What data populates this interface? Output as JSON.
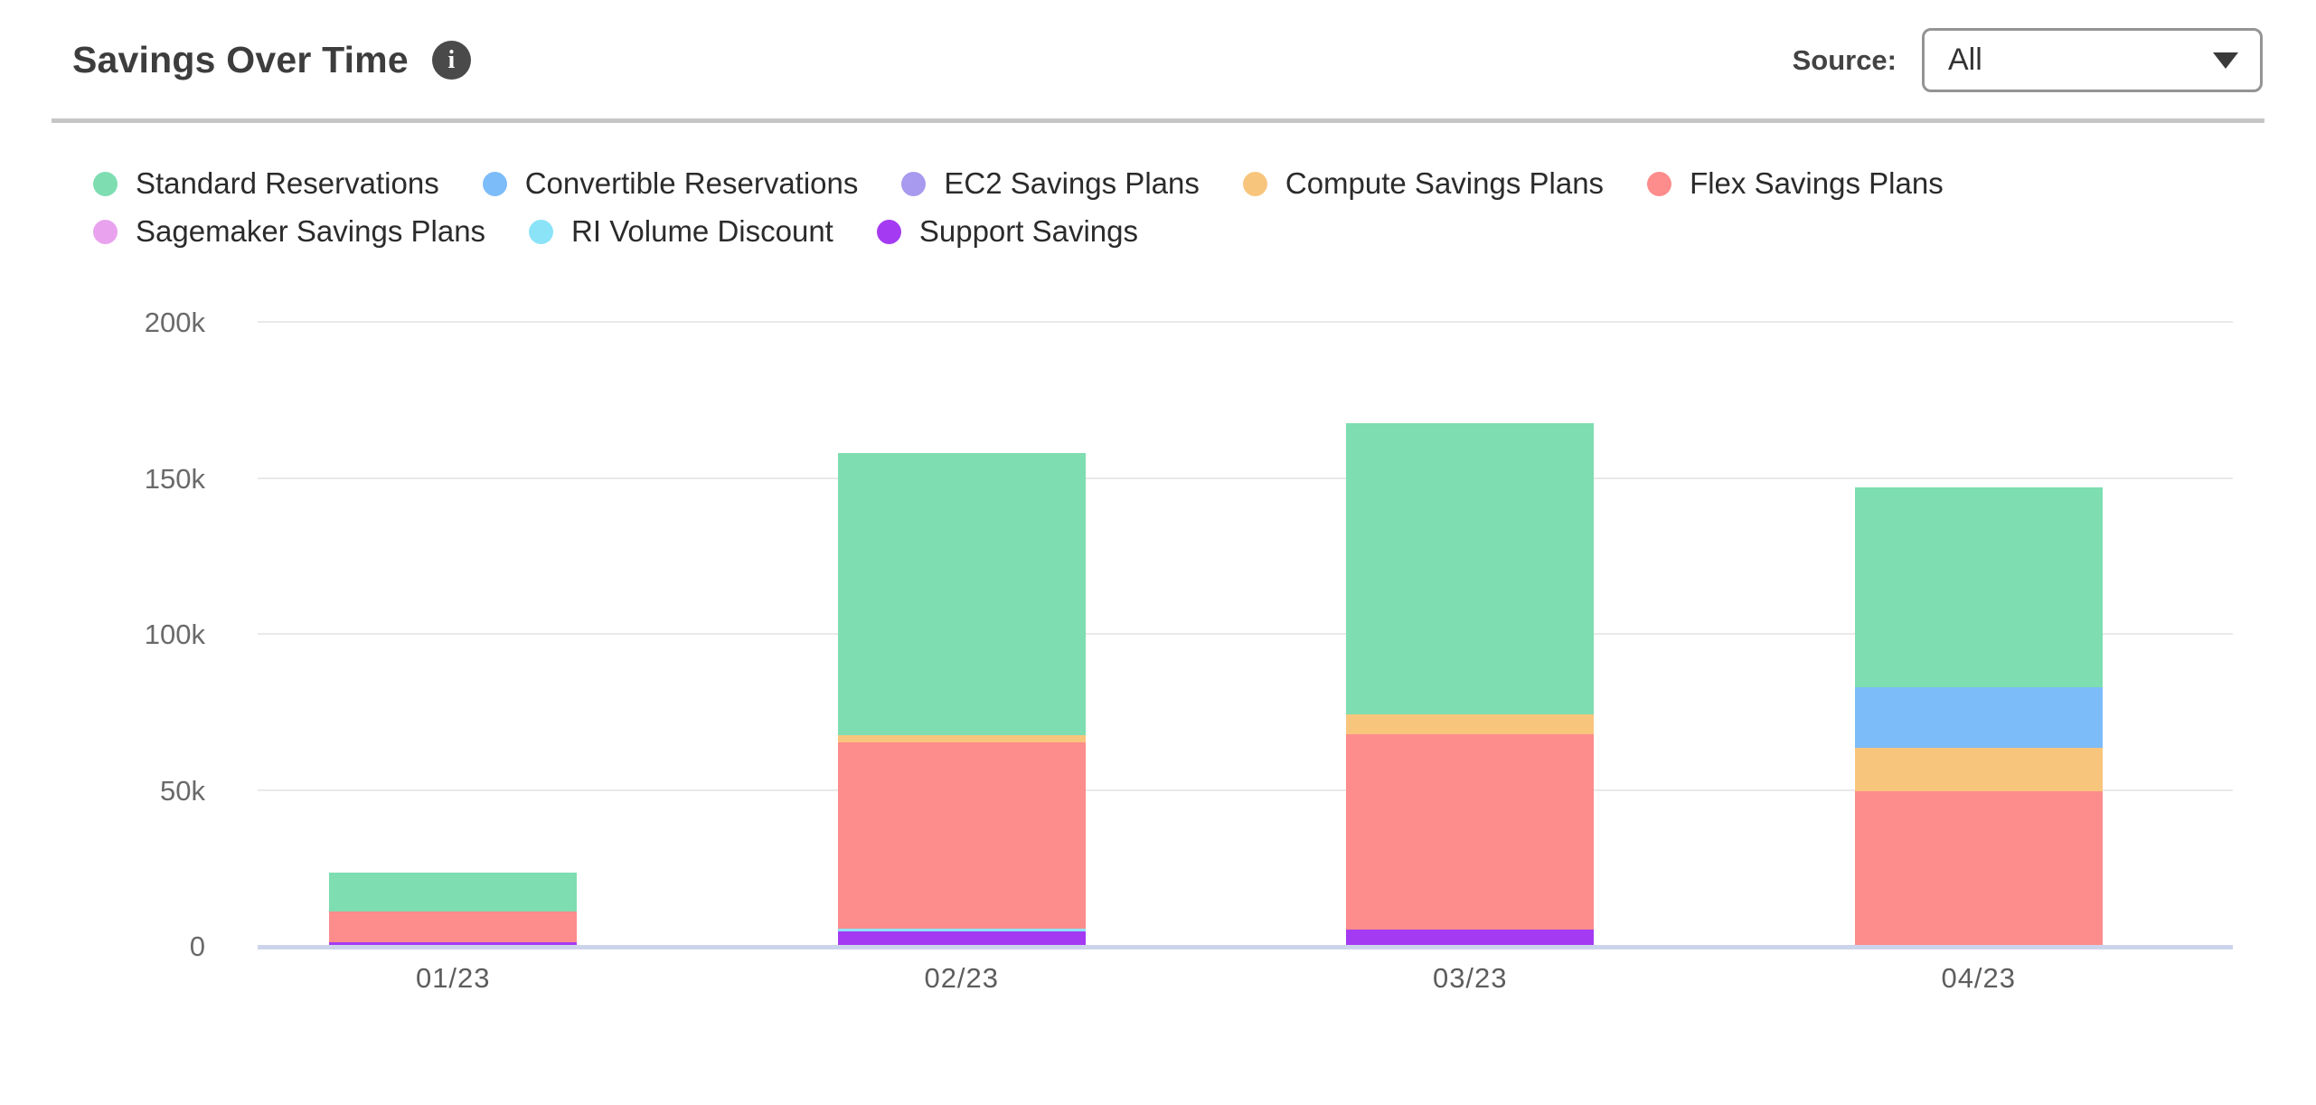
{
  "header": {
    "title": "Savings Over Time",
    "info_glyph": "i",
    "source_label": "Source:",
    "source_value": "All"
  },
  "ui_colors": {
    "gridline": "#E9E9E9",
    "axis_line": "#CCD4EC",
    "info_badge": "#4A4A4A",
    "dropdown_border": "#949494",
    "divider": "#C6C6C6"
  },
  "chart_data": {
    "type": "bar",
    "stacked": true,
    "title": "Savings Over Time",
    "xlabel": "",
    "ylabel": "",
    "categories": [
      "01/23",
      "02/23",
      "03/23",
      "04/23"
    ],
    "series": [
      {
        "name": "Standard Reservations",
        "color": "#7EDDB1",
        "values": [
          12300,
          90600,
          93500,
          64100
        ]
      },
      {
        "name": "Convertible Reservations",
        "color": "#7CBCF8",
        "values": [
          0,
          0,
          0,
          19600
        ]
      },
      {
        "name": "EC2 Savings Plans",
        "color": "#A79AEF",
        "values": [
          0,
          0,
          0,
          0
        ]
      },
      {
        "name": "Compute Savings Plans",
        "color": "#F8C57D",
        "values": [
          0,
          2300,
          6300,
          13700
        ]
      },
      {
        "name": "Flex Savings Plans",
        "color": "#FD8C8C",
        "values": [
          10000,
          59600,
          62500,
          50000
        ]
      },
      {
        "name": "Sagemaker Savings Plans",
        "color": "#E9A3EE",
        "values": [
          0,
          0,
          0,
          0
        ]
      },
      {
        "name": "RI Volume Discount",
        "color": "#8BE3F7",
        "values": [
          0,
          1000,
          0,
          0
        ]
      },
      {
        "name": "Support Savings",
        "color": "#A43BF2",
        "values": [
          1400,
          4900,
          5600,
          0
        ]
      }
    ],
    "stack_order_bottom_to_top": [
      "Support Savings",
      "RI Volume Discount",
      "Sagemaker Savings Plans",
      "Flex Savings Plans",
      "Compute Savings Plans",
      "EC2 Savings Plans",
      "Convertible Reservations",
      "Standard Reservations"
    ],
    "totals": [
      23700,
      158400,
      167900,
      147400
    ],
    "ylim": [
      0,
      200000
    ],
    "yticks": [
      {
        "value": 0,
        "label": "0"
      },
      {
        "value": 50000,
        "label": "50k"
      },
      {
        "value": 100000,
        "label": "100k"
      },
      {
        "value": 150000,
        "label": "150k"
      },
      {
        "value": 200000,
        "label": "200k"
      }
    ],
    "grid": true,
    "legend_position": "top"
  }
}
